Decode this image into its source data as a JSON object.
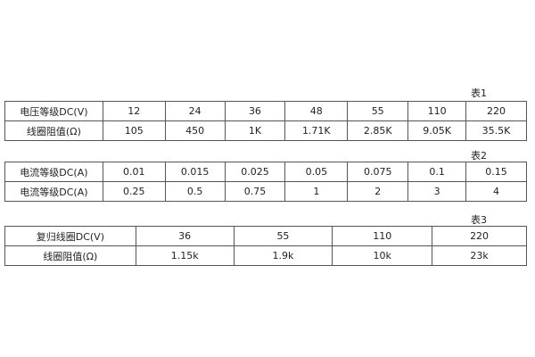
{
  "table1": {
    "caption": "表1",
    "rows": [
      [
        "电压等级DC(V)",
        "12",
        "24",
        "36",
        "48",
        "55",
        "110",
        "220"
      ],
      [
        "线圈阻值(Ω)",
        "105",
        "450",
        "1K",
        "1.71K",
        "2.85K",
        "9.05K",
        "35.5K"
      ]
    ]
  },
  "table2": {
    "caption": "表2",
    "rows": [
      [
        "电流等级DC(A)",
        "0.01",
        "0.015",
        "0.025",
        "0.05",
        "0.075",
        "0.1",
        "0.15"
      ],
      [
        "电流等级DC(A)",
        "0.25",
        "0.5",
        "0.75",
        "1",
        "2",
        "3",
        "4"
      ]
    ]
  },
  "table3": {
    "caption": "表3",
    "rows": [
      [
        "复归线圈DC(V)",
        "36",
        "55",
        "110",
        "220"
      ],
      [
        "线圈阻值(Ω)",
        "1.15k",
        "1.9k",
        "10k",
        "23k"
      ]
    ]
  }
}
